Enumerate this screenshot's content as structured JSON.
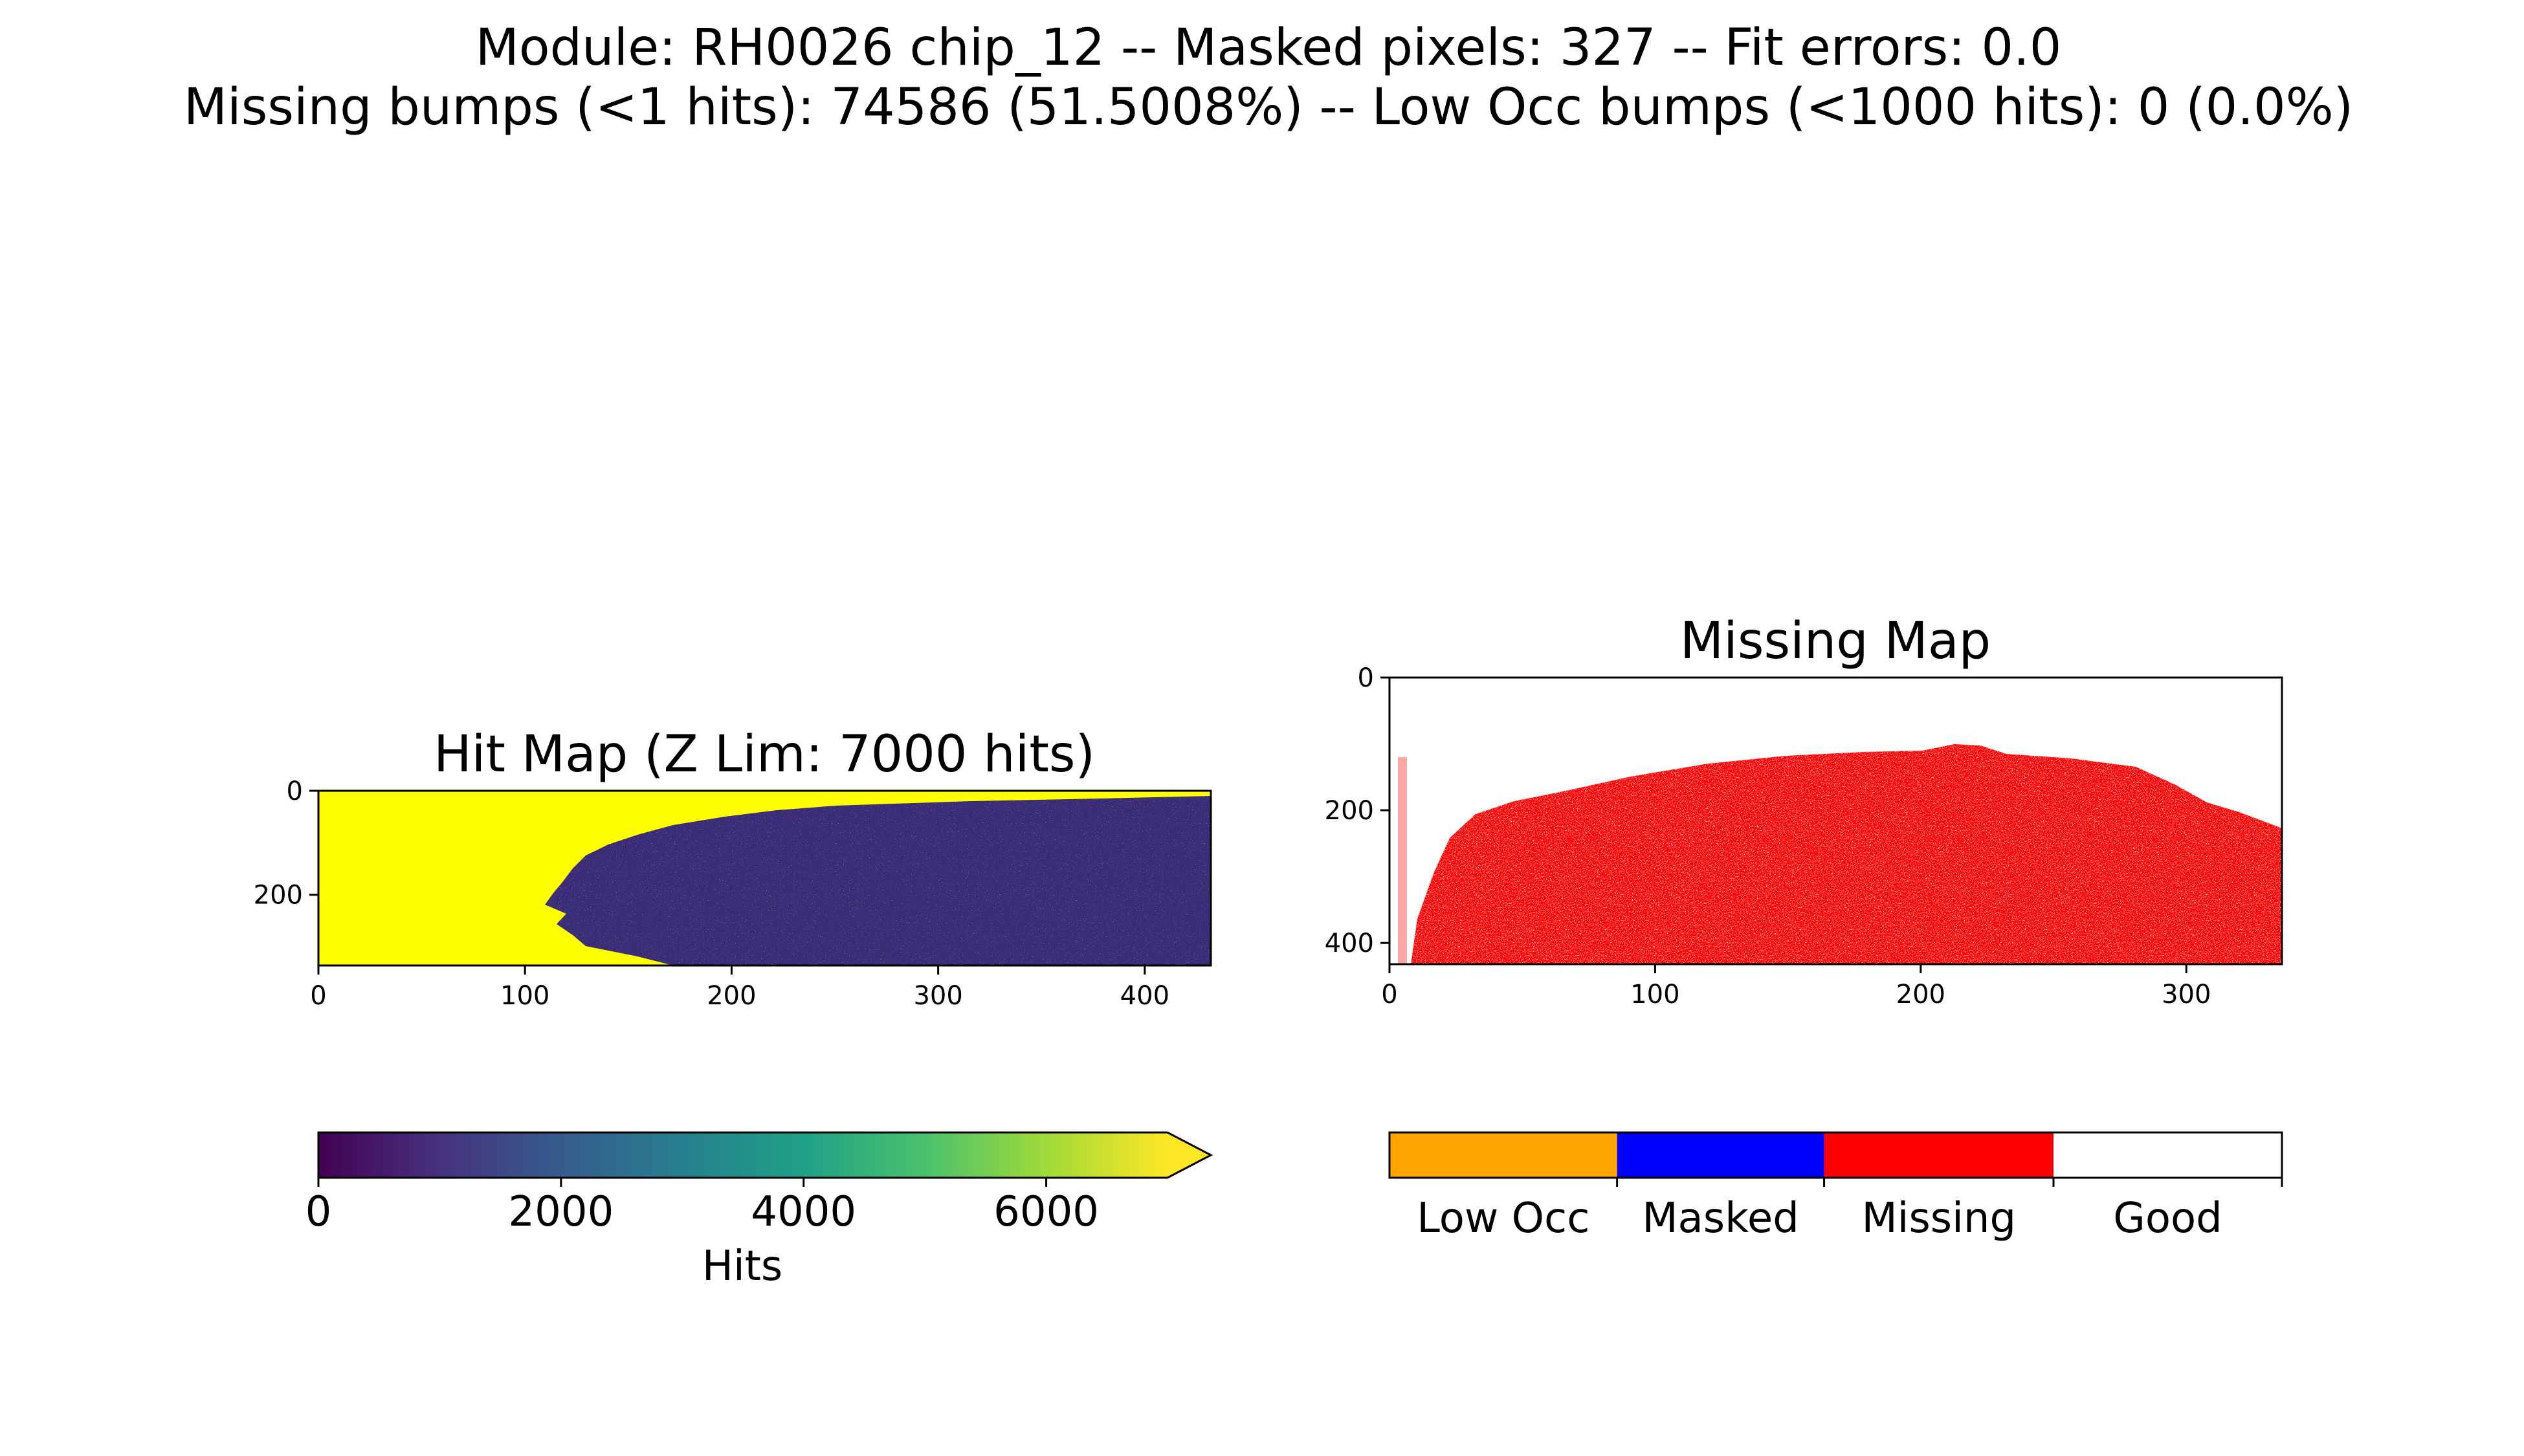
{
  "figure": {
    "suptitle_line1": "Module: RH0026 chip_12 -- Masked pixels: 327 -- Fit errors: 0.0",
    "suptitle_line2": "Missing bumps (<1 hits): 74586 (51.5008%) -- Low Occ bumps (<1000 hits): 0 (0.0%)"
  },
  "colors": {
    "viridis": [
      "#440154",
      "#46327e",
      "#365c8d",
      "#277f8e",
      "#1fa187",
      "#4ac16d",
      "#a0da39",
      "#fde725"
    ],
    "over": "#ffff00",
    "low_occ": "#ffa500",
    "masked": "#0000ff",
    "missing": "#ff0000",
    "good": "#ffffff"
  },
  "chart_data": [
    {
      "type": "heatmap",
      "title": "Hit Map (Z Lim: 7000 hits)",
      "xlim": [
        0,
        432
      ],
      "ylim": [
        336,
        0
      ],
      "xticks": [
        0,
        100,
        200,
        300,
        400
      ],
      "yticks": [
        0,
        200
      ],
      "colorbar": {
        "label": "Hits",
        "range": [
          0,
          7000
        ],
        "ticks": [
          0,
          2000,
          4000,
          6000
        ],
        "extend": "max"
      },
      "regions": [
        {
          "name": "saturated",
          "value": ">=7000",
          "extent": "left part, boundary from x~100 (bottom) to x~250 (top)"
        },
        {
          "name": "low",
          "value": "~500-1500",
          "extent": "right part"
        }
      ]
    },
    {
      "type": "heatmap",
      "title": "Missing Map",
      "xlim": [
        0,
        336
      ],
      "ylim": [
        432,
        0
      ],
      "xticks": [
        0,
        100,
        200,
        300
      ],
      "yticks": [
        0,
        200,
        400
      ],
      "categories": [
        "Low Occ",
        "Masked",
        "Missing",
        "Good"
      ],
      "regions": [
        {
          "name": "Missing",
          "extent": "dome covering lower portion, top edge near y~110 at x~240"
        },
        {
          "name": "Good",
          "extent": "upper area"
        }
      ]
    }
  ]
}
